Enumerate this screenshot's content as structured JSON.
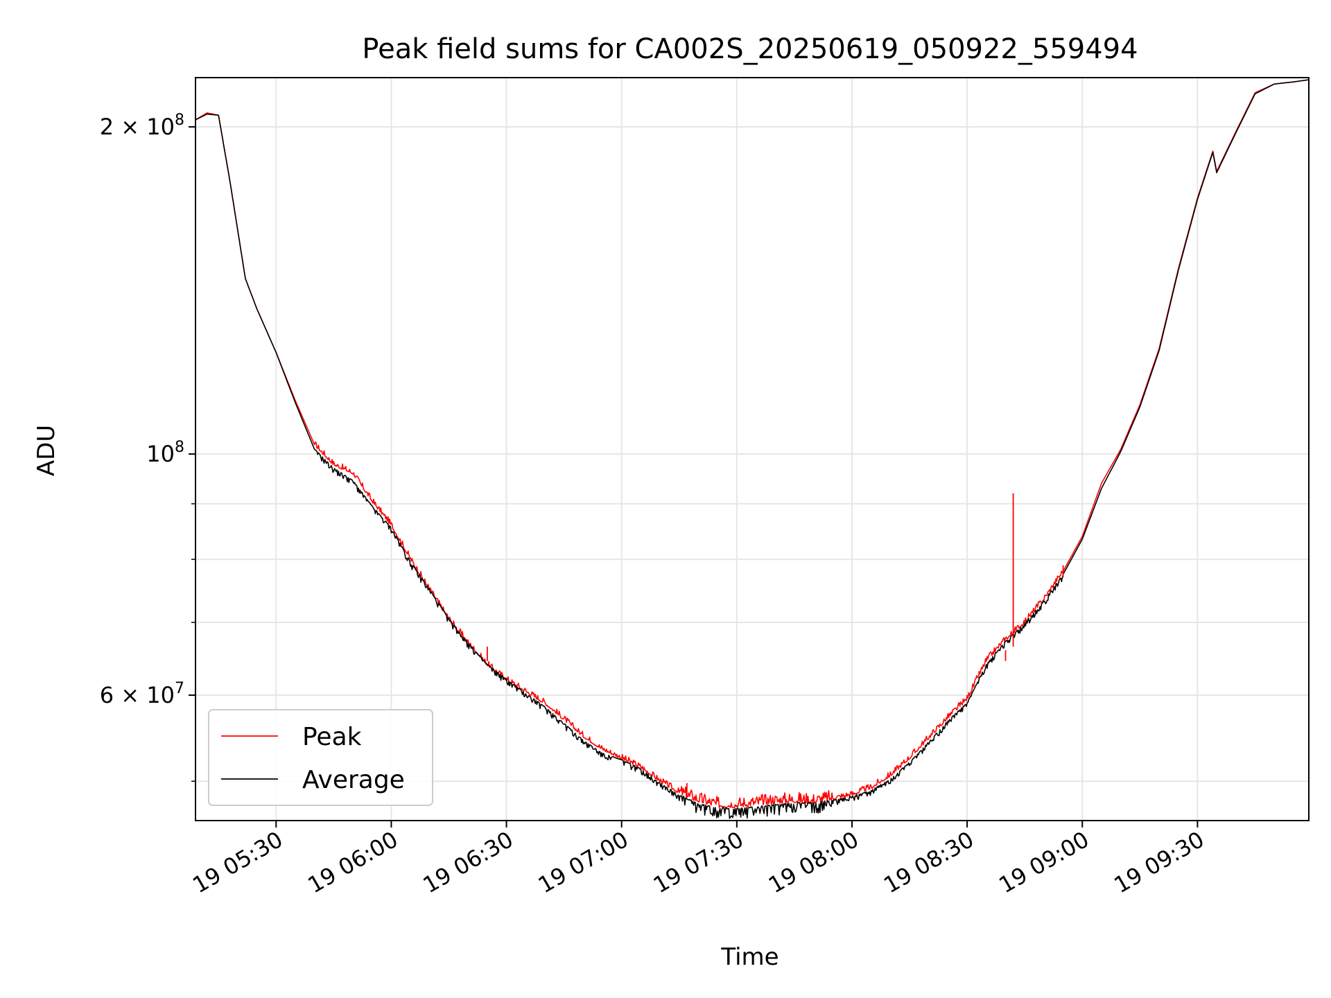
{
  "chart_data": {
    "type": "line",
    "title": "Peak field sums for CA002S_20250619_050922_559494",
    "xlabel": "Time",
    "ylabel": "ADU",
    "yscale": "log",
    "xlim": [
      "19 05:09",
      "19 09:59"
    ],
    "ylim": [
      46000000,
      222000000
    ],
    "grid": true,
    "legend_position": "lower-left",
    "x_ticks": [
      {
        "value": "19 05:30",
        "label": "19 05:30"
      },
      {
        "value": "19 06:00",
        "label": "19 06:00"
      },
      {
        "value": "19 06:30",
        "label": "19 06:30"
      },
      {
        "value": "19 07:00",
        "label": "19 07:00"
      },
      {
        "value": "19 07:30",
        "label": "19 07:30"
      },
      {
        "value": "19 08:00",
        "label": "19 08:00"
      },
      {
        "value": "19 08:30",
        "label": "19 08:30"
      },
      {
        "value": "19 09:00",
        "label": "19 09:00"
      },
      {
        "value": "19 09:30",
        "label": "19 09:30"
      }
    ],
    "y_major_ticks": [
      {
        "value": 60000000,
        "label": "6 × 10",
        "exp": "7"
      },
      {
        "value": 100000000,
        "label": "10",
        "exp": "8"
      },
      {
        "value": 200000000,
        "label": "2 × 10",
        "exp": "8"
      }
    ],
    "y_minor_ticks": [
      50000000,
      70000000,
      80000000,
      90000000
    ],
    "series": [
      {
        "name": "Peak",
        "color": "#ff0000",
        "points": [
          [
            "19 05:09",
            203000000
          ],
          [
            "19 05:12",
            206000000
          ],
          [
            "19 05:15",
            205000000
          ],
          [
            "19 05:18",
            178000000
          ],
          [
            "19 05:22",
            145000000
          ],
          [
            "19 05:25",
            136000000
          ],
          [
            "19 05:30",
            124000000
          ],
          [
            "19 05:35",
            112000000
          ],
          [
            "19 05:40",
            102000000
          ],
          [
            "19 05:45",
            97800000
          ],
          [
            "19 05:50",
            96000000
          ],
          [
            "19 05:55",
            90500000
          ],
          [
            "19 06:00",
            86000000
          ],
          [
            "19 06:05",
            80000000
          ],
          [
            "19 06:10",
            75000000
          ],
          [
            "19 06:15",
            70500000
          ],
          [
            "19 06:20",
            67000000
          ],
          [
            "19 06:25",
            64000000
          ],
          [
            "19 06:30",
            62000000
          ],
          [
            "19 06:35",
            60500000
          ],
          [
            "19 06:40",
            59000000
          ],
          [
            "19 06:45",
            57000000
          ],
          [
            "19 06:50",
            55000000
          ],
          [
            "19 06:55",
            53500000
          ],
          [
            "19 07:00",
            52500000
          ],
          [
            "19 07:05",
            51500000
          ],
          [
            "19 07:10",
            50000000
          ],
          [
            "19 07:15",
            48800000
          ],
          [
            "19 07:20",
            48000000
          ],
          [
            "19 07:25",
            47500000
          ],
          [
            "19 07:30",
            47500000
          ],
          [
            "19 07:35",
            47700000
          ],
          [
            "19 07:40",
            47900000
          ],
          [
            "19 07:45",
            48000000
          ],
          [
            "19 07:50",
            47900000
          ],
          [
            "19 07:55",
            48200000
          ],
          [
            "19 08:00",
            48600000
          ],
          [
            "19 08:05",
            49300000
          ],
          [
            "19 08:10",
            50600000
          ],
          [
            "19 08:15",
            52500000
          ],
          [
            "19 08:20",
            54800000
          ],
          [
            "19 08:25",
            57200000
          ],
          [
            "19 08:30",
            59500000
          ],
          [
            "19 08:35",
            64500000
          ],
          [
            "19 08:40",
            67500000
          ],
          [
            "19 08:45",
            70000000
          ],
          [
            "19 08:50",
            73500000
          ],
          [
            "19 08:55",
            78000000
          ],
          [
            "19 09:00",
            84000000
          ],
          [
            "19 09:05",
            94000000
          ],
          [
            "19 09:10",
            101000000
          ],
          [
            "19 09:15",
            111000000
          ],
          [
            "19 09:20",
            125000000
          ],
          [
            "19 09:25",
            148000000
          ],
          [
            "19 09:30",
            172000000
          ],
          [
            "19 09:34",
            190000000
          ],
          [
            "19 09:35",
            182000000
          ],
          [
            "19 09:40",
            198000000
          ],
          [
            "19 09:45",
            215000000
          ],
          [
            "19 09:50",
            219000000
          ],
          [
            "19 09:55",
            220000000
          ],
          [
            "19 09:59",
            221000000
          ]
        ],
        "spikes": [
          {
            "x": "19 08:42",
            "base": 66500000,
            "peak": 92000000
          },
          {
            "x": "19 06:25",
            "base": 64500000,
            "peak": 66500000
          },
          {
            "x": "19 07:17",
            "base": 48300000,
            "peak": 49800000
          },
          {
            "x": "19 08:40",
            "base": 64500000,
            "peak": 66000000
          },
          {
            "x": "19 08:55",
            "base": 77000000,
            "peak": 79000000
          }
        ]
      },
      {
        "name": "Average",
        "color": "#000000",
        "points": [
          [
            "19 05:09",
            203000000
          ],
          [
            "19 05:12",
            205500000
          ],
          [
            "19 05:15",
            205000000
          ],
          [
            "19 05:18",
            178000000
          ],
          [
            "19 05:22",
            145000000
          ],
          [
            "19 05:25",
            136000000
          ],
          [
            "19 05:30",
            124000000
          ],
          [
            "19 05:35",
            111500000
          ],
          [
            "19 05:40",
            101000000
          ],
          [
            "19 05:45",
            97000000
          ],
          [
            "19 05:50",
            94500000
          ],
          [
            "19 05:55",
            89500000
          ],
          [
            "19 06:00",
            85500000
          ],
          [
            "19 06:05",
            79500000
          ],
          [
            "19 06:10",
            75000000
          ],
          [
            "19 06:15",
            70500000
          ],
          [
            "19 06:20",
            67000000
          ],
          [
            "19 06:25",
            64000000
          ],
          [
            "19 06:30",
            62000000
          ],
          [
            "19 06:35",
            60200000
          ],
          [
            "19 06:40",
            58500000
          ],
          [
            "19 06:45",
            56500000
          ],
          [
            "19 06:50",
            54500000
          ],
          [
            "19 06:55",
            53000000
          ],
          [
            "19 07:00",
            52300000
          ],
          [
            "19 07:05",
            51300000
          ],
          [
            "19 07:10",
            49800000
          ],
          [
            "19 07:15",
            48500000
          ],
          [
            "19 07:20",
            47600000
          ],
          [
            "19 07:25",
            47200000
          ],
          [
            "19 07:30",
            47100000
          ],
          [
            "19 07:35",
            47300000
          ],
          [
            "19 07:40",
            47500000
          ],
          [
            "19 07:45",
            47700000
          ],
          [
            "19 07:50",
            47700000
          ],
          [
            "19 07:55",
            48000000
          ],
          [
            "19 08:00",
            48400000
          ],
          [
            "19 08:05",
            49000000
          ],
          [
            "19 08:10",
            50200000
          ],
          [
            "19 08:15",
            52000000
          ],
          [
            "19 08:20",
            54300000
          ],
          [
            "19 08:25",
            56800000
          ],
          [
            "19 08:30",
            59000000
          ],
          [
            "19 08:35",
            64000000
          ],
          [
            "19 08:40",
            67200000
          ],
          [
            "19 08:45",
            69800000
          ],
          [
            "19 08:50",
            73200000
          ],
          [
            "19 08:55",
            77500000
          ],
          [
            "19 09:00",
            83500000
          ],
          [
            "19 09:05",
            93000000
          ],
          [
            "19 09:10",
            100500000
          ],
          [
            "19 09:15",
            110500000
          ],
          [
            "19 09:20",
            124500000
          ],
          [
            "19 09:25",
            147500000
          ],
          [
            "19 09:30",
            171500000
          ],
          [
            "19 09:34",
            189500000
          ],
          [
            "19 09:35",
            181500000
          ],
          [
            "19 09:40",
            197500000
          ],
          [
            "19 09:45",
            214500000
          ],
          [
            "19 09:50",
            219000000
          ],
          [
            "19 09:55",
            220000000
          ],
          [
            "19 09:59",
            221000000
          ]
        ]
      }
    ]
  }
}
